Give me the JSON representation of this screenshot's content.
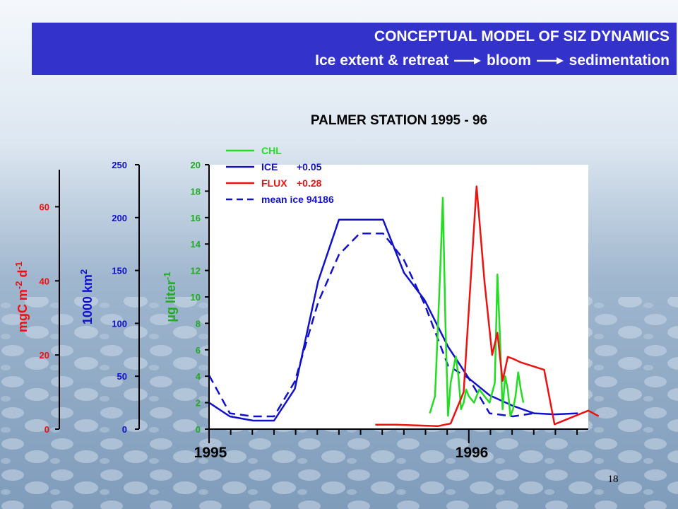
{
  "slide": {
    "title": "CONCEPTUAL MODEL OF SIZ DYNAMICS",
    "subtitle_parts": [
      "Ice extent & retreat",
      "bloom",
      "sedimentation"
    ],
    "page_number": "18"
  },
  "colors": {
    "banner": "#3333cc",
    "chl": "#22dd22",
    "ice": "#1111cc",
    "flux": "#ee1111",
    "plot_bg": "#ffffff"
  },
  "chart_data": {
    "type": "line",
    "title": "PALMER STATION 1995 - 96",
    "x_ticks": [
      "1995",
      "1996"
    ],
    "axes": {
      "flux": {
        "label_parts": [
          "mgC m",
          "-2",
          " d",
          "-1"
        ],
        "range": [
          0,
          70
        ],
        "ticks": [
          0,
          20,
          40,
          60
        ],
        "color": "#ee1111"
      },
      "ice": {
        "label_parts": [
          "1000 km",
          "2"
        ],
        "range": [
          0,
          250
        ],
        "ticks": [
          0,
          50,
          100,
          150,
          200,
          250
        ],
        "color": "#1111cc"
      },
      "chl": {
        "label_parts": [
          "µg liter",
          "-1"
        ],
        "range": [
          0,
          20
        ],
        "ticks": [
          0,
          2,
          4,
          6,
          8,
          10,
          12,
          14,
          16,
          18,
          20
        ],
        "color": "#22aa22"
      }
    },
    "legend": [
      {
        "label": "CHL",
        "note": "",
        "color": "#22dd22",
        "dash": false
      },
      {
        "label": "ICE",
        "note": "+0.05",
        "color": "#1111cc",
        "dash": false
      },
      {
        "label": "FLUX",
        "note": "+0.28",
        "color": "#ee1111",
        "dash": false
      },
      {
        "label": "mean ice 94186",
        "note": "",
        "color": "#1111cc",
        "dash": true
      }
    ],
    "series": [
      {
        "name": "ICE",
        "axis": "ice",
        "color": "#1111cc",
        "dash": false,
        "x": [
          1995.0,
          1995.08,
          1995.17,
          1995.25,
          1995.33,
          1995.42,
          1995.5,
          1995.58,
          1995.67,
          1995.75,
          1995.83,
          1995.92,
          1996.0,
          1996.08,
          1996.17,
          1996.25,
          1996.33,
          1996.42
        ],
        "y": [
          25,
          12,
          8,
          8,
          38,
          140,
          198,
          198,
          198,
          148,
          122,
          78,
          48,
          32,
          22,
          15,
          14,
          15
        ]
      },
      {
        "name": "mean ice 94186",
        "axis": "ice",
        "color": "#1111cc",
        "dash": true,
        "x": [
          1995.0,
          1995.08,
          1995.17,
          1995.25,
          1995.33,
          1995.42,
          1995.5,
          1995.58,
          1995.67,
          1995.75,
          1995.83,
          1995.92,
          1996.0,
          1996.08,
          1996.17,
          1996.25
        ],
        "y": [
          51,
          15,
          12,
          12,
          45,
          120,
          165,
          185,
          185,
          160,
          118,
          60,
          48,
          15,
          12,
          15
        ]
      },
      {
        "name": "CHL",
        "axis": "chl",
        "color": "#22dd22",
        "dash": false,
        "x": [
          1995.85,
          1995.87,
          1995.89,
          1995.9,
          1995.91,
          1995.92,
          1995.93,
          1995.94,
          1995.95,
          1995.96,
          1995.97,
          1995.98,
          1995.99,
          1996.0,
          1996.02,
          1996.04,
          1996.06,
          1996.08,
          1996.1,
          1996.11,
          1996.12,
          1996.13,
          1996.14,
          1996.15,
          1996.16,
          1996.17,
          1996.18,
          1996.19,
          1996.2,
          1996.21
        ],
        "y": [
          1.2,
          2.5,
          12.0,
          17.5,
          8.0,
          1.0,
          3.5,
          4.5,
          5.5,
          4.0,
          1.5,
          2.0,
          3.0,
          2.5,
          2.0,
          3.0,
          2.5,
          2.0,
          3.5,
          11.7,
          7.0,
          1.5,
          4.0,
          3.0,
          1.0,
          1.5,
          2.5,
          4.3,
          3.0,
          2.0
        ]
      },
      {
        "name": "FLUX",
        "axis": "flux",
        "color": "#ee1111",
        "dash": false,
        "x": [
          1995.64,
          1995.72,
          1995.8,
          1995.88,
          1995.93,
          1995.98,
          1996.03,
          1996.06,
          1996.09,
          1996.11,
          1996.13,
          1996.15,
          1996.17,
          1996.2,
          1996.29,
          1996.33,
          1996.46,
          1996.5
        ],
        "y": [
          1.2,
          1.2,
          1.0,
          0.8,
          1.5,
          10.0,
          65.5,
          40.0,
          20.0,
          26.0,
          13.0,
          19.5,
          19.0,
          18.0,
          16.0,
          1.3,
          5.0,
          3.5
        ]
      }
    ]
  }
}
